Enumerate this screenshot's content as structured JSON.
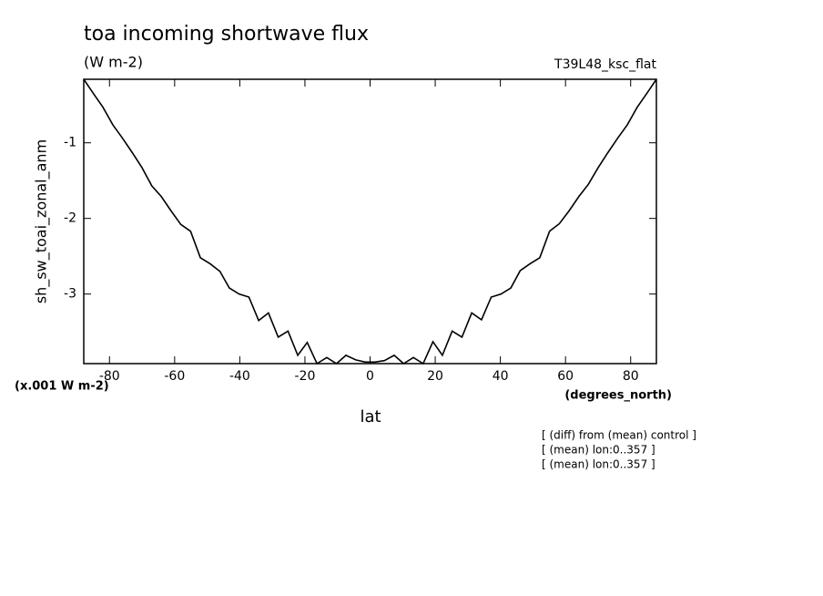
{
  "chart_data": {
    "type": "line",
    "title": "toa incoming shortwave flux",
    "subtitle": "(W m-2)",
    "dataset_label": "T39L48_ksc_flat",
    "ylabel": "sh_sw_toai_zonal_anm",
    "yunits": "(x.001 W m-2)",
    "xlabel": "lat",
    "xunits": "(degrees_north)",
    "annotations": [
      "[ (diff) from (mean) control ]",
      "[ (mean) lon:0..357 ]",
      "[ (mean) lon:0..357 ]"
    ],
    "x": [
      -87.9,
      -84.9,
      -82.0,
      -79.0,
      -76.0,
      -73.0,
      -70.0,
      -67.0,
      -64.1,
      -61.1,
      -58.1,
      -55.1,
      -52.1,
      -49.1,
      -46.1,
      -43.2,
      -40.2,
      -37.2,
      -34.2,
      -31.2,
      -28.2,
      -25.2,
      -22.2,
      -19.3,
      -16.3,
      -13.3,
      -10.3,
      -7.4,
      -4.4,
      -1.5,
      1.5,
      4.4,
      7.4,
      10.3,
      13.3,
      16.3,
      19.3,
      22.2,
      25.2,
      28.2,
      31.2,
      34.2,
      37.2,
      40.2,
      43.2,
      46.1,
      49.1,
      52.1,
      55.1,
      58.1,
      61.1,
      64.1,
      67.0,
      70.0,
      73.0,
      76.0,
      79.0,
      82.0,
      84.9,
      87.9
    ],
    "series": [
      {
        "name": "sh_sw_toai_zonal_anm",
        "color": "#000000",
        "values": [
          -0.16,
          -0.35,
          -0.53,
          -0.76,
          -0.94,
          -1.13,
          -1.33,
          -1.57,
          -1.71,
          -1.9,
          -2.08,
          -2.17,
          -2.52,
          -2.6,
          -2.7,
          -2.92,
          -3.0,
          -3.04,
          -3.35,
          -3.25,
          -3.57,
          -3.49,
          -3.81,
          -3.64,
          -3.92,
          -3.84,
          -3.92,
          -3.81,
          -3.87,
          -3.9,
          -3.9,
          -3.88,
          -3.81,
          -3.92,
          -3.84,
          -3.92,
          -3.63,
          -3.81,
          -3.49,
          -3.57,
          -3.25,
          -3.34,
          -3.04,
          -3.0,
          -2.92,
          -2.69,
          -2.6,
          -2.52,
          -2.17,
          -2.07,
          -1.9,
          -1.71,
          -1.55,
          -1.33,
          -1.13,
          -0.94,
          -0.76,
          -0.53,
          -0.35,
          -0.16
        ]
      }
    ],
    "xlim": [
      -87.9,
      87.9
    ],
    "ylim": [
      -3.92,
      -0.16
    ],
    "xticks": [
      -80,
      -60,
      -40,
      -20,
      0,
      20,
      40,
      60,
      80
    ],
    "yticks": [
      -1,
      -2,
      -3
    ],
    "grid": false
  }
}
